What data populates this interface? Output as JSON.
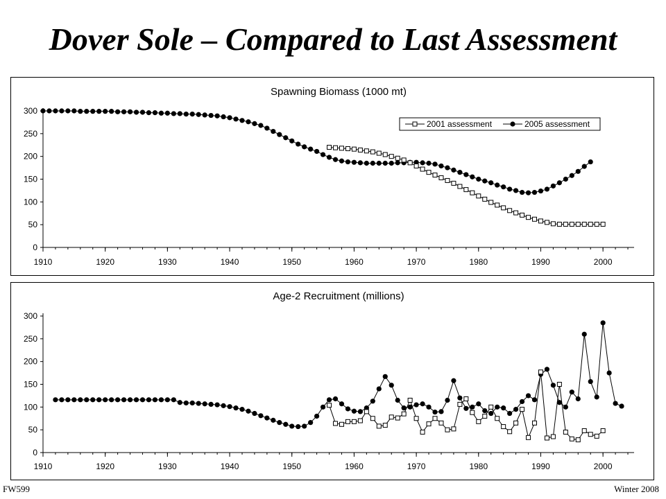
{
  "slide": {
    "title": "Dover Sole – Compared to Last Assessment"
  },
  "footer": {
    "left": "FW599",
    "right": "Winter 2008"
  },
  "chart_data": [
    {
      "type": "line",
      "title": "Spawning Biomass (1000 mt)",
      "xlim": [
        1910,
        2005
      ],
      "ylim": [
        0,
        300
      ],
      "xticks": [
        1910,
        1920,
        1930,
        1940,
        1950,
        1960,
        1970,
        1980,
        1990,
        2000
      ],
      "yticks": [
        0,
        50,
        100,
        150,
        200,
        250,
        300
      ],
      "legend_position": "top-right",
      "series": [
        {
          "name": "2005 assessment",
          "marker": "filled-circle",
          "x_start": 1910,
          "values": [
            300,
            300,
            300,
            300,
            300,
            300,
            299,
            299,
            299,
            299,
            299,
            299,
            298,
            298,
            298,
            297,
            297,
            296,
            296,
            295,
            295,
            294,
            294,
            293,
            293,
            292,
            291,
            290,
            289,
            287,
            285,
            282,
            279,
            276,
            272,
            268,
            262,
            255,
            248,
            241,
            234,
            227,
            221,
            216,
            211,
            204,
            198,
            193,
            190,
            188,
            187,
            186,
            185,
            185,
            185,
            185,
            185,
            186,
            186,
            187,
            187,
            186,
            185,
            183,
            179,
            175,
            170,
            165,
            160,
            155,
            150,
            146,
            142,
            137,
            133,
            128,
            125,
            121,
            120,
            121,
            124,
            128,
            135,
            142,
            150,
            158,
            167,
            178,
            188
          ]
        },
        {
          "name": "2001 assessment",
          "marker": "open-square",
          "x_start": 1956,
          "values": [
            220,
            219,
            218,
            217,
            216,
            214,
            212,
            210,
            207,
            204,
            200,
            196,
            192,
            186,
            179,
            172,
            165,
            159,
            153,
            147,
            141,
            134,
            127,
            120,
            113,
            106,
            99,
            93,
            87,
            81,
            76,
            71,
            66,
            62,
            58,
            55,
            52,
            51,
            51,
            51,
            51,
            51,
            51,
            51,
            51
          ]
        }
      ]
    },
    {
      "type": "line",
      "title": "Age-2 Recruitment (millions)",
      "xlim": [
        1910,
        2005
      ],
      "ylim": [
        0,
        300
      ],
      "xticks": [
        1910,
        1920,
        1930,
        1940,
        1950,
        1960,
        1970,
        1980,
        1990,
        2000
      ],
      "yticks": [
        0,
        50,
        100,
        150,
        200,
        250,
        300
      ],
      "series": [
        {
          "name": "2005 assessment",
          "marker": "filled-circle",
          "x_start": 1912,
          "values": [
            116,
            116,
            116,
            116,
            116,
            116,
            116,
            116,
            116,
            116,
            116,
            116,
            116,
            116,
            116,
            116,
            116,
            116,
            116,
            116,
            110,
            109,
            109,
            108,
            107,
            106,
            105,
            103,
            101,
            98,
            95,
            91,
            86,
            81,
            76,
            71,
            66,
            62,
            58,
            57,
            58,
            66,
            80,
            100,
            116,
            118,
            107,
            96,
            91,
            90,
            98,
            113,
            140,
            167,
            148,
            115,
            98,
            100,
            105,
            107,
            100,
            89,
            90,
            115,
            158,
            120,
            97,
            100,
            107,
            92,
            86,
            100,
            98,
            86,
            95,
            112,
            125,
            116,
            172,
            183,
            148,
            110,
            100,
            133,
            118,
            260,
            156,
            122,
            285,
            175,
            108,
            102
          ]
        },
        {
          "name": "2001 assessment",
          "marker": "open-square",
          "x_start": 1956,
          "values": [
            104,
            64,
            62,
            68,
            68,
            70,
            90,
            75,
            58,
            60,
            78,
            76,
            85,
            115,
            75,
            45,
            63,
            75,
            65,
            50,
            52,
            106,
            118,
            88,
            68,
            80,
            100,
            75,
            57,
            46,
            65,
            95,
            33,
            65,
            177,
            32,
            35,
            150,
            45,
            30,
            28,
            48,
            40,
            36,
            48
          ]
        }
      ]
    }
  ]
}
